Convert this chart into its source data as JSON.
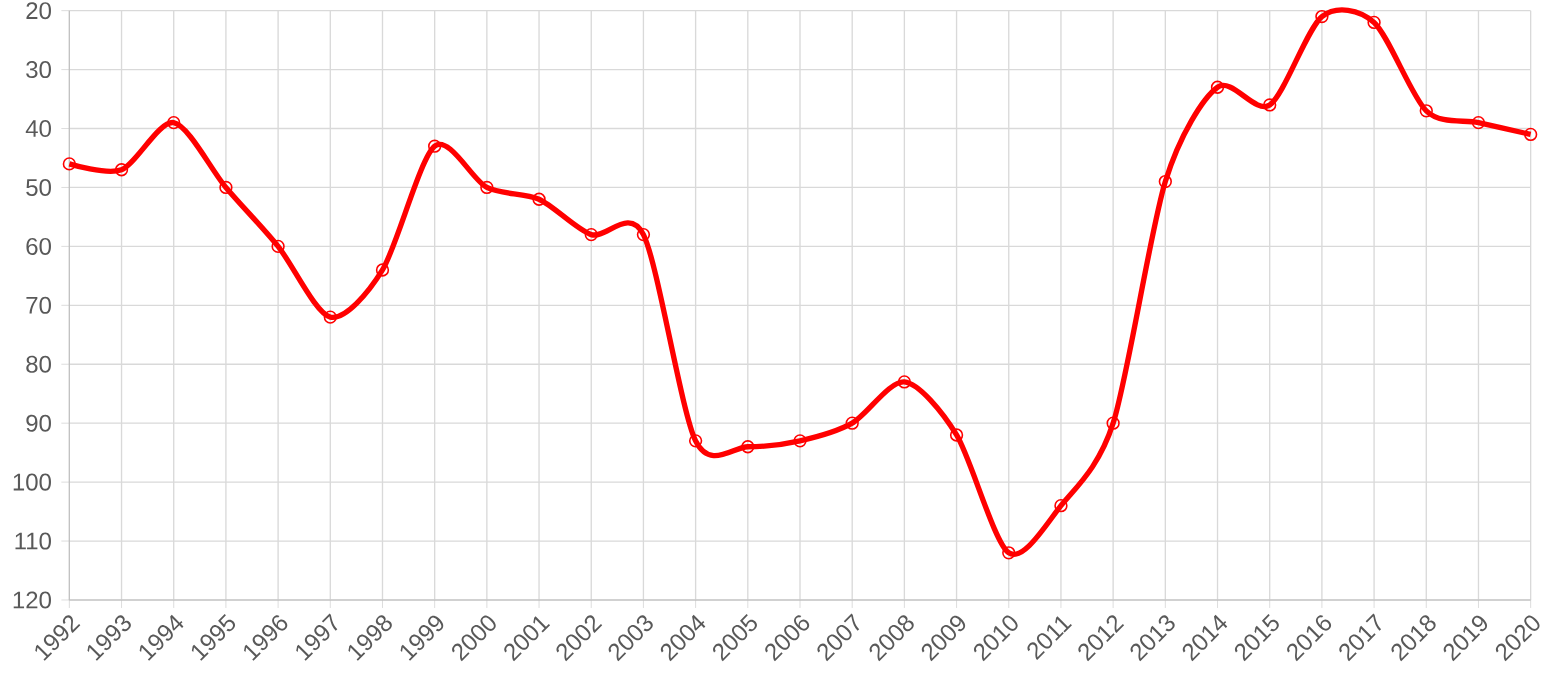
{
  "chart_data": {
    "type": "line",
    "categories": [
      "1992",
      "1993",
      "1994",
      "1995",
      "1996",
      "1997",
      "1998",
      "1999",
      "2000",
      "2001",
      "2002",
      "2003",
      "2004",
      "2005",
      "2006",
      "2007",
      "2008",
      "2009",
      "2010",
      "2011",
      "2012",
      "2013",
      "2014",
      "2015",
      "2016",
      "2017",
      "2018",
      "2019",
      "2020"
    ],
    "series": [
      {
        "color": "#ff0000",
        "values": [
          46,
          47,
          39,
          50,
          60,
          72,
          64,
          43,
          50,
          52,
          58,
          58,
          93,
          94,
          93,
          90,
          83,
          92,
          112,
          104,
          90,
          49,
          33,
          36,
          21,
          22,
          37,
          39,
          41
        ]
      }
    ],
    "ylim": [
      120,
      20
    ],
    "yticks": [
      20,
      30,
      40,
      50,
      60,
      70,
      80,
      90,
      100,
      110,
      120
    ],
    "grid": true,
    "marker": "circle",
    "line_style": "solid"
  }
}
